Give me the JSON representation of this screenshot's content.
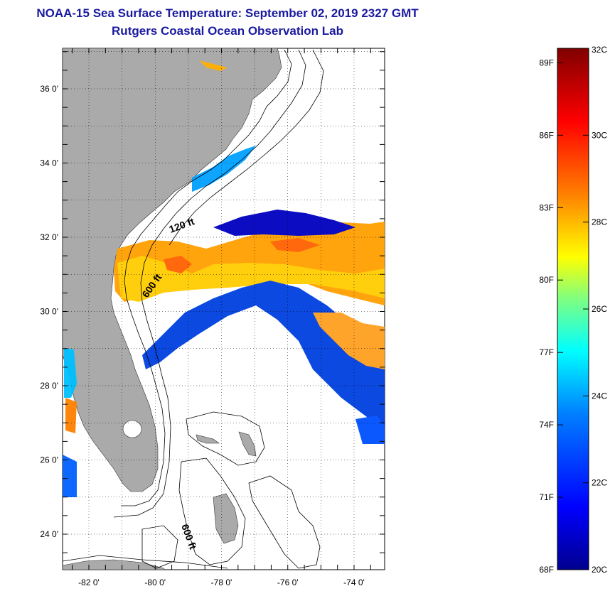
{
  "title": {
    "line1": "NOAA-15 Sea Surface Temperature:  September 02, 2019 2327 GMT",
    "line2": "Rutgers Coastal Ocean Observation Lab"
  },
  "map": {
    "lat_labels": [
      "36 0'",
      "34 0'",
      "32 0'",
      "30 0'",
      "28 0'",
      "26 0'",
      "24 0'"
    ],
    "lat_values": [
      36,
      34,
      32,
      30,
      28,
      26,
      24
    ],
    "lon_labels": [
      "-82 0'",
      "-80 0'",
      "-78 0'",
      "-76 0'",
      "-74 0'"
    ],
    "lon_values": [
      -82,
      -80,
      -78,
      -76,
      -74
    ],
    "contour_labels": [
      "120 ft",
      "600 ft",
      "600 ft"
    ],
    "land_color": "#aaaaaa",
    "contour_color": "#000000"
  },
  "colorbar": {
    "f_labels": [
      "89F",
      "86F",
      "83F",
      "80F",
      "77F",
      "74F",
      "71F",
      "68F"
    ],
    "c_labels": [
      "32C",
      "30C",
      "28C",
      "26C",
      "24C",
      "22C",
      "20C"
    ],
    "min_c": 20,
    "max_c": 32,
    "colors": [
      "#00008f",
      "#0000ff",
      "#0080ff",
      "#00ffff",
      "#80ff80",
      "#ffff00",
      "#ff8000",
      "#ff0000",
      "#800000"
    ]
  }
}
